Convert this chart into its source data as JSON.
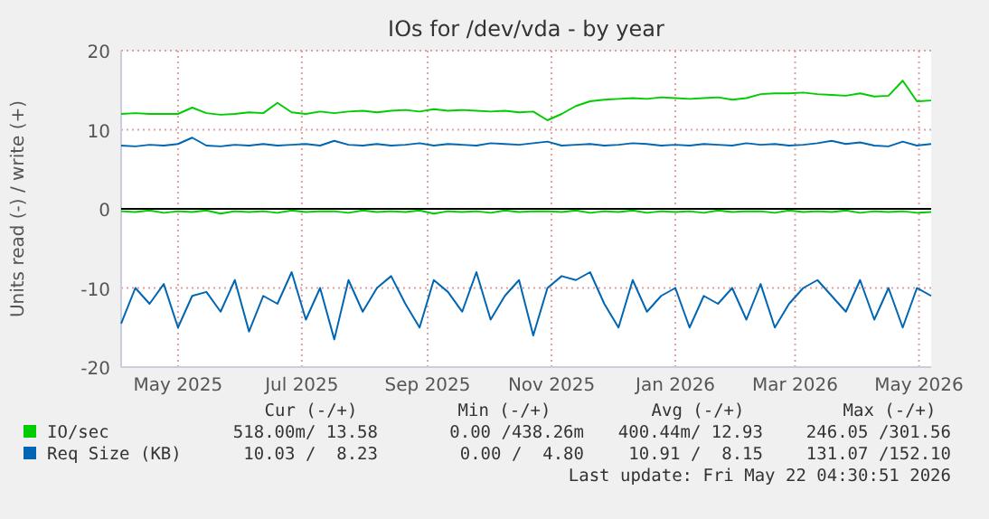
{
  "chart_data": {
    "type": "line",
    "title": "IOs for /dev/vda - by year",
    "ylabel": "Units read (-) / write (+)",
    "x": [
      "2025-04-18",
      "2025-04-25",
      "2025-05-02",
      "2025-05-09",
      "2025-05-16",
      "2025-05-23",
      "2025-05-30",
      "2025-06-06",
      "2025-06-13",
      "2025-06-20",
      "2025-06-27",
      "2025-07-04",
      "2025-07-11",
      "2025-07-18",
      "2025-07-25",
      "2025-08-01",
      "2025-08-08",
      "2025-08-15",
      "2025-08-22",
      "2025-08-29",
      "2025-09-05",
      "2025-09-12",
      "2025-09-19",
      "2025-09-26",
      "2025-10-03",
      "2025-10-10",
      "2025-10-17",
      "2025-10-24",
      "2025-10-31",
      "2025-11-07",
      "2025-11-14",
      "2025-11-21",
      "2025-11-28",
      "2025-12-05",
      "2025-12-12",
      "2025-12-19",
      "2025-12-26",
      "2026-01-02",
      "2026-01-09",
      "2026-01-16",
      "2026-01-23",
      "2026-01-30",
      "2026-02-06",
      "2026-02-13",
      "2026-02-20",
      "2026-02-27",
      "2026-03-06",
      "2026-03-13",
      "2026-03-20",
      "2026-03-27",
      "2026-04-03",
      "2026-04-10",
      "2026-04-17",
      "2026-04-24",
      "2026-05-01",
      "2026-05-08",
      "2026-05-15",
      "2026-05-22"
    ],
    "series": [
      {
        "name": "IO/sec",
        "color": "#00cc00",
        "values": [
          12.0,
          12.1,
          12.0,
          12.0,
          12.0,
          12.8,
          12.1,
          11.9,
          12.0,
          12.2,
          12.1,
          13.4,
          12.2,
          12.0,
          12.3,
          12.1,
          12.3,
          12.4,
          12.2,
          12.4,
          12.5,
          12.3,
          12.6,
          12.4,
          12.5,
          12.4,
          12.3,
          12.4,
          12.2,
          12.3,
          11.2,
          12.0,
          13.0,
          13.6,
          13.8,
          13.9,
          14.0,
          13.9,
          14.1,
          14.0,
          13.9,
          14.0,
          14.1,
          13.8,
          14.0,
          14.5,
          14.6,
          14.6,
          14.7,
          14.5,
          14.4,
          14.3,
          14.6,
          14.2,
          14.3,
          16.2,
          13.6,
          13.7
        ]
      },
      {
        "color": "#00cc00",
        "values": [
          -0.3,
          -0.4,
          -0.2,
          -0.5,
          -0.3,
          -0.4,
          -0.2,
          -0.6,
          -0.3,
          -0.4,
          -0.3,
          -0.5,
          -0.2,
          -0.4,
          -0.3,
          -0.3,
          -0.5,
          -0.2,
          -0.4,
          -0.3,
          -0.4,
          -0.2,
          -0.6,
          -0.3,
          -0.4,
          -0.3,
          -0.5,
          -0.2,
          -0.4,
          -0.3,
          -0.3,
          -0.4,
          -0.2,
          -0.5,
          -0.3,
          -0.4,
          -0.2,
          -0.5,
          -0.3,
          -0.4,
          -0.3,
          -0.5,
          -0.2,
          -0.4,
          -0.3,
          -0.3,
          -0.5,
          -0.2,
          -0.4,
          -0.3,
          -0.4,
          -0.2,
          -0.5,
          -0.3,
          -0.4,
          -0.3,
          -0.5,
          -0.4
        ]
      },
      {
        "name": "Req Size (KB)",
        "color": "#0066b3",
        "values": [
          8.0,
          7.9,
          8.1,
          8.0,
          8.2,
          9.0,
          8.0,
          7.9,
          8.1,
          8.0,
          8.2,
          8.0,
          8.1,
          8.2,
          8.0,
          8.6,
          8.1,
          8.0,
          8.2,
          8.0,
          8.1,
          8.3,
          8.0,
          8.2,
          8.1,
          8.0,
          8.3,
          8.2,
          8.1,
          8.3,
          8.5,
          8.0,
          8.1,
          8.2,
          8.0,
          8.1,
          8.3,
          8.2,
          8.0,
          8.1,
          8.0,
          8.2,
          8.1,
          8.0,
          8.3,
          8.1,
          8.2,
          8.0,
          8.1,
          8.3,
          8.6,
          8.2,
          8.4,
          8.0,
          7.9,
          8.5,
          8.0,
          8.2
        ]
      },
      {
        "color": "#0066b3",
        "values": [
          -14.5,
          -10,
          -12,
          -9.5,
          -15,
          -11,
          -10.5,
          -13,
          -9,
          -15.5,
          -11,
          -12,
          -8,
          -14,
          -10,
          -16.5,
          -9,
          -13,
          -10,
          -8.5,
          -12,
          -15,
          -9,
          -10.5,
          -13,
          -8,
          -14,
          -11,
          -9,
          -16,
          -10,
          -8.5,
          -9,
          -8,
          -12,
          -15,
          -9,
          -13,
          -11,
          -10,
          -15,
          -11,
          -12,
          -10,
          -14,
          -9.5,
          -15,
          -12,
          -10,
          -9,
          -11,
          -13,
          -9,
          -14,
          -10,
          -15,
          -10,
          -11
        ]
      }
    ],
    "xlim": [
      "2025-04-18",
      "2026-05-22"
    ],
    "xticks": [
      {
        "value": "2025-05-16",
        "label": "May 2025"
      },
      {
        "value": "2025-07-16",
        "label": "Jul 2025"
      },
      {
        "value": "2025-09-16",
        "label": "Sep 2025"
      },
      {
        "value": "2025-11-16",
        "label": "Nov 2025"
      },
      {
        "value": "2026-01-16",
        "label": "Jan 2026"
      },
      {
        "value": "2026-03-16",
        "label": "Mar 2026"
      },
      {
        "value": "2026-05-16",
        "label": "May 2026"
      }
    ],
    "ylim": [
      -20,
      20
    ],
    "yticks": [
      -20,
      -10,
      0,
      10,
      20
    ],
    "grid": true,
    "legend": "bottom",
    "line_style": "solid",
    "ref_lines": [
      {
        "axis": "y",
        "value": 0,
        "color": "#000000"
      }
    ],
    "annotations": [
      "Cur (-/+)",
      "Min (-/+)",
      "Avg (-/+)",
      "Max (-/+)",
      "518.00m/ 13.58",
      "0.00 /438.26m",
      "400.44m/ 12.93",
      "246.05 /301.56",
      "10.03 /  8.23",
      "0.00 /  4.80",
      "10.91 /  8.15",
      "131.07 /152.10",
      "Last update: Fri May 22 04:30:51 2026"
    ]
  }
}
